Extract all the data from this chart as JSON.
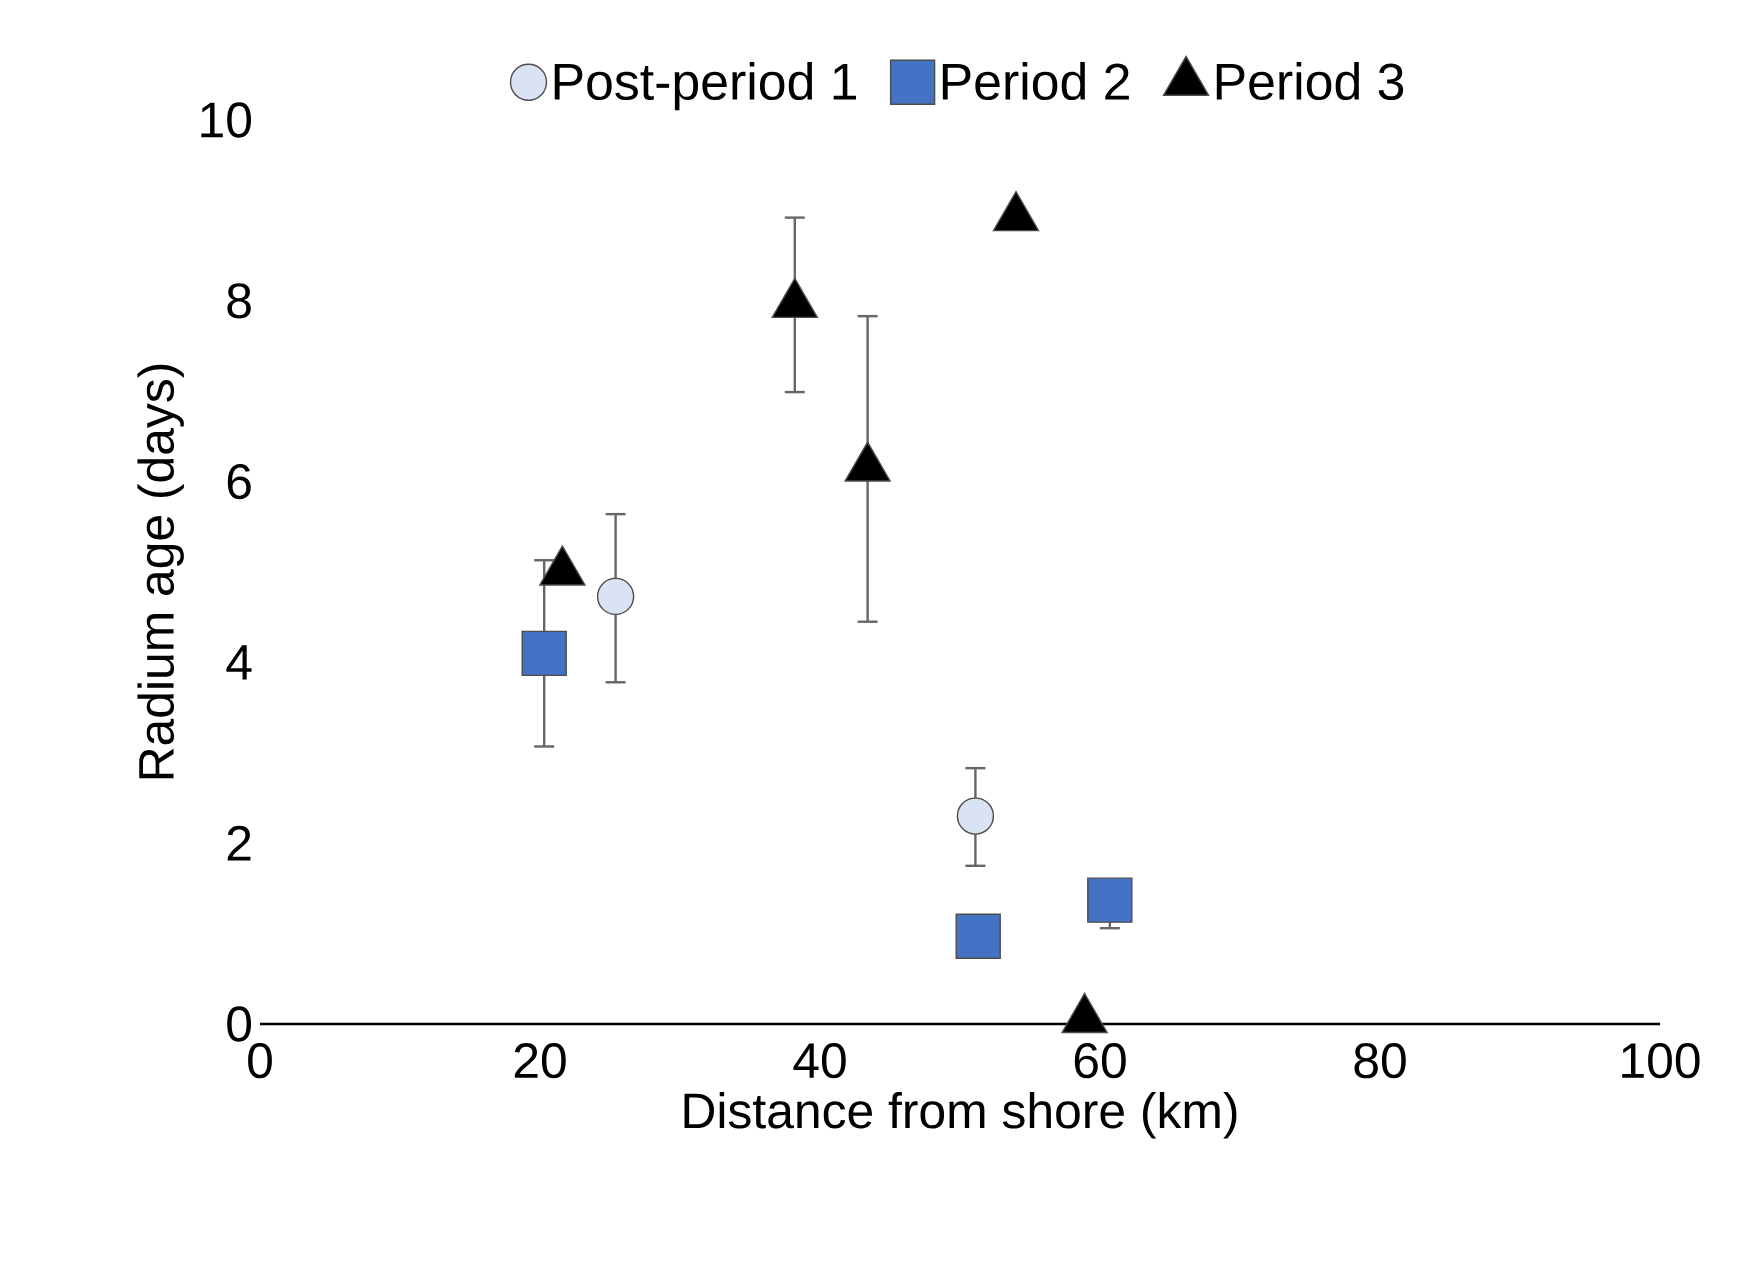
{
  "chart_data": {
    "type": "scatter",
    "xlabel": "Distance from shore (km)",
    "ylabel": "Radium age (days)",
    "xlim": [
      0,
      100
    ],
    "xticks": [
      0,
      20,
      40,
      60,
      80,
      100
    ],
    "ylim": [
      0,
      10
    ],
    "yticks": [
      0,
      2,
      4,
      6,
      8,
      10
    ],
    "grid": false,
    "legend": "top",
    "series": [
      {
        "name": "Post-period 1",
        "color": "#dae3f3",
        "marker": "circle",
        "x": [
          25.4,
          51.1
        ],
        "values": [
          4.73,
          2.3
        ],
        "errors": [
          [
            3.78,
            5.64
          ],
          [
            1.75,
            2.83
          ]
        ]
      },
      {
        "name": "Period 2",
        "color": "#4472c4",
        "marker": "square",
        "x": [
          20.3,
          51.3,
          60.7
        ],
        "values": [
          4.1,
          0.97,
          1.37
        ],
        "errors": [
          [
            3.07,
            5.13
          ],
          null,
          [
            1.06,
            1.37
          ]
        ]
      },
      {
        "name": "Period 3",
        "color": "#000000",
        "marker": "triangle",
        "x": [
          21.6,
          38.2,
          43.4,
          54.0,
          58.9
        ],
        "values": [
          5.0,
          7.96,
          6.15,
          8.92,
          0.05
        ],
        "errors": [
          null,
          [
            6.99,
            8.92
          ],
          [
            4.45,
            7.83
          ],
          null,
          null
        ]
      }
    ]
  }
}
